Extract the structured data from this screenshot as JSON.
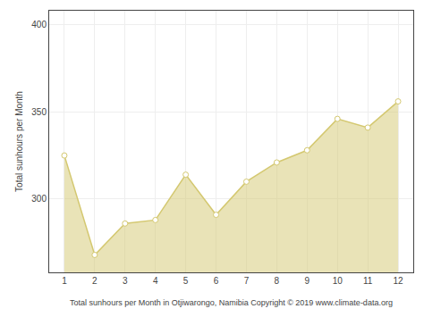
{
  "chart_data": {
    "type": "area",
    "x": [
      1,
      2,
      3,
      4,
      5,
      6,
      7,
      8,
      9,
      10,
      11,
      12
    ],
    "values": [
      325,
      268,
      286,
      288,
      314,
      291,
      310,
      321,
      328,
      346,
      341,
      356
    ],
    "xlabel": "Total sunhours per Month in Otjiwarongo, Namibia Copyright © 2019 www.climate-data.org",
    "ylabel": "Total sunhours per Month",
    "xlim": [
      0.5,
      12.5
    ],
    "xticks": [
      1,
      2,
      3,
      4,
      5,
      6,
      7,
      8,
      9,
      10,
      11,
      12
    ],
    "ylim": [
      258,
      408
    ],
    "yticks": [
      300,
      350,
      400
    ],
    "color": "#d4c870",
    "marker": "circle",
    "grid": true
  }
}
